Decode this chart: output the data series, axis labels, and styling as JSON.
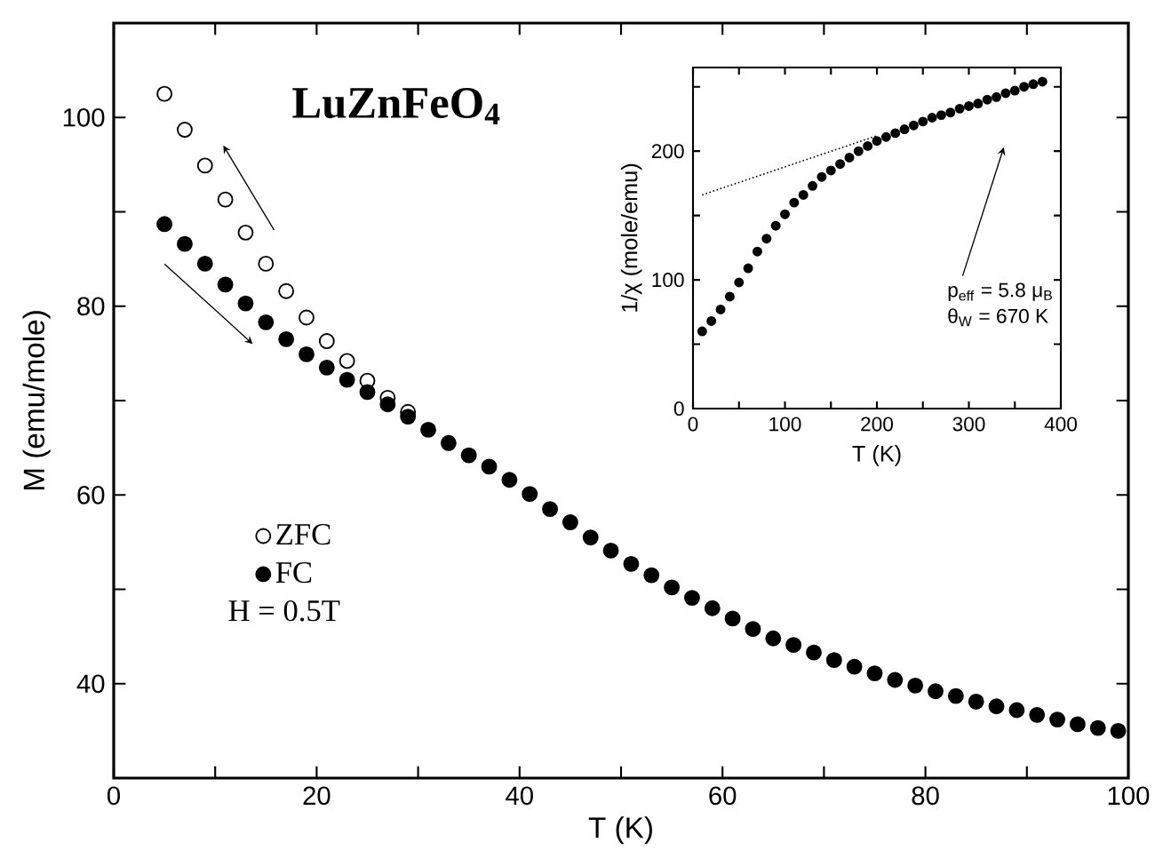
{
  "chart_data": [
    {
      "type": "scatter",
      "title": "LuZnFeO$_{4}$",
      "xlabel": "T (K)",
      "ylabel": "M (emu/mole)",
      "annotations": [
        "H = 0.5T"
      ],
      "xlim": [
        0,
        100
      ],
      "ylim": [
        30,
        110
      ],
      "xticks": [
        0,
        {
          "value": 10,
          "label": null
        },
        20,
        {
          "value": 30,
          "label": null
        },
        40,
        {
          "value": 50,
          "label": null
        },
        60,
        {
          "value": 70,
          "label": null
        },
        80,
        {
          "value": 90,
          "label": null
        },
        100
      ],
      "yticks": [
        40,
        {
          "value": 50,
          "label": null
        },
        60,
        {
          "value": 70,
          "label": null
        },
        80,
        {
          "value": 90,
          "label": null
        },
        100
      ],
      "marker": "circle",
      "legend": "left",
      "series": [
        {
          "name": "ZFC",
          "color": "#000000",
          "x": [
            5,
            7,
            9,
            11,
            13,
            15,
            17,
            19,
            21,
            23,
            25,
            27,
            29
          ],
          "values": [
            102.5,
            98.7,
            94.9,
            91.3,
            87.8,
            84.5,
            81.6,
            78.8,
            76.3,
            74.2,
            72.1,
            70.3,
            68.8
          ]
        },
        {
          "name": "FC",
          "color": "#000000",
          "x": [
            5,
            7,
            9,
            11,
            13,
            15,
            17,
            19,
            21,
            23,
            25,
            27,
            29,
            31,
            33,
            35,
            37,
            39,
            41,
            43,
            45,
            47,
            49,
            51,
            53,
            55,
            57,
            59,
            61,
            63,
            65,
            67,
            69,
            71,
            73,
            75,
            77,
            79,
            81,
            83,
            85,
            87,
            89,
            91,
            93,
            95,
            97,
            99
          ],
          "values": [
            88.7,
            86.6,
            84.5,
            82.3,
            80.3,
            78.3,
            76.5,
            74.9,
            73.5,
            72.2,
            70.9,
            69.6,
            68.3,
            66.9,
            65.5,
            64.2,
            63.0,
            61.6,
            60.1,
            58.5,
            57.1,
            55.5,
            54.1,
            52.7,
            51.5,
            50.2,
            49.1,
            48.0,
            46.9,
            45.8,
            44.8,
            44.1,
            43.3,
            42.5,
            41.8,
            41.1,
            40.4,
            39.8,
            39.2,
            38.7,
            38.1,
            37.6,
            37.2,
            36.7,
            36.2,
            35.7,
            35.3,
            35.0
          ]
        }
      ]
    },
    {
      "type": "scatter",
      "xlabel": "T (K)",
      "ylabel": "1/χ (mole/emu)",
      "annotations": [
        "p$_{eff}$ = 5.8 μ$_{B}$",
        "θ$_{W}$ = 670 K"
      ],
      "xlim": [
        0,
        400
      ],
      "ylim": [
        0,
        265
      ],
      "xticks": [
        0,
        {
          "value": 50,
          "label": null
        },
        100,
        {
          "value": 150,
          "label": null
        },
        200,
        {
          "value": 250,
          "label": null
        },
        300,
        {
          "value": 350,
          "label": null
        },
        400
      ],
      "yticks": [
        0,
        {
          "value": 50,
          "label": null
        },
        100,
        {
          "value": 150,
          "label": null
        },
        200,
        {
          "value": 250,
          "label": null
        }
      ],
      "marker": "circle",
      "series": [
        {
          "color": "#000000",
          "x": [
            10,
            20,
            30,
            40,
            50,
            60,
            70,
            80,
            90,
            100,
            110,
            120,
            130,
            140,
            150,
            160,
            170,
            180,
            190,
            200,
            210,
            220,
            230,
            240,
            250,
            260,
            270,
            280,
            290,
            300,
            310,
            320,
            330,
            340,
            350,
            360,
            370,
            380
          ],
          "values": [
            60,
            68,
            77,
            87,
            98,
            109,
            122,
            132,
            142,
            151,
            160,
            166,
            173,
            180,
            185,
            190,
            195,
            200,
            204,
            208,
            211,
            214,
            217,
            220,
            223,
            226,
            228,
            230,
            233,
            235,
            237,
            240,
            242,
            245,
            247,
            250,
            252,
            254
          ]
        },
        {
          "type": "line",
          "line_style": "dotted",
          "marker": "none",
          "color": "#000000",
          "x": [
            10,
            200
          ],
          "values": [
            166,
            212
          ]
        }
      ]
    }
  ]
}
